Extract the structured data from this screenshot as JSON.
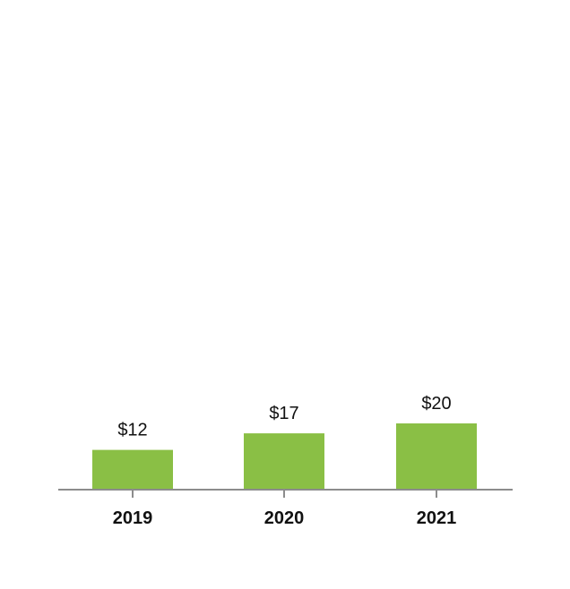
{
  "chart_data": {
    "type": "bar",
    "categories": [
      "2019",
      "2020",
      "2021"
    ],
    "values": [
      12,
      17,
      20
    ],
    "data_labels": [
      "$12",
      "$17",
      "$20"
    ],
    "title": "",
    "xlabel": "",
    "ylabel": "",
    "ylim": [
      0,
      100
    ],
    "grid": false,
    "legend": "none",
    "colors": {
      "bar": "#8abf45",
      "axis": "#8c8c8c",
      "text": "#111111"
    }
  }
}
